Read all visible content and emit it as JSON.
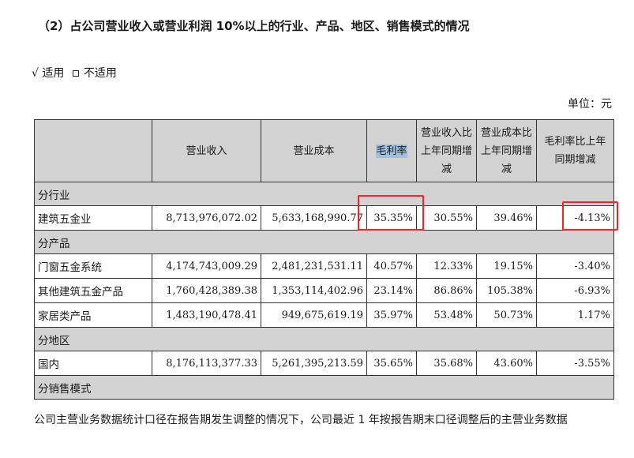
{
  "heading": "（2）占公司营业收入或营业利润 10%以上的行业、产品、地区、销售模式的情况",
  "applicable": {
    "yes_mark": "√",
    "yes_label": "适用",
    "no_label": "不适用"
  },
  "unit": "单位：元",
  "table": {
    "headers": [
      "",
      "营业收入",
      "营业成本",
      "毛利率",
      "营业收入比上年同期增减",
      "营业成本比上年同期增减",
      "毛利率比上年同期增减"
    ],
    "sections": [
      {
        "title": "分行业",
        "rows": [
          [
            "建筑五金业",
            "8,713,976,072.02",
            "5,633,168,990.77",
            "35.35%",
            "30.55%",
            "39.46%",
            "-4.13%"
          ]
        ]
      },
      {
        "title": "分产品",
        "rows": [
          [
            "门窗五金系统",
            "4,174,743,009.29",
            "2,481,231,531.11",
            "40.57%",
            "12.33%",
            "19.15%",
            "-3.40%"
          ],
          [
            "其他建筑五金产品",
            "1,760,428,389.38",
            "1,353,114,402.96",
            "23.14%",
            "86.86%",
            "105.38%",
            "-6.93%"
          ],
          [
            "家居类产品",
            "1,483,190,478.41",
            "949,675,619.19",
            "35.97%",
            "53.48%",
            "50.73%",
            "1.17%"
          ]
        ]
      },
      {
        "title": "分地区",
        "rows": [
          [
            "国内",
            "8,176,113,377.33",
            "5,261,395,213.59",
            "35.65%",
            "35.68%",
            "43.60%",
            "-3.55%"
          ]
        ]
      },
      {
        "title": "分销售模式",
        "rows": []
      }
    ]
  },
  "footnote": "公司主营业务数据统计口径在报告期发生调整的情况下，公司最近 1 年按报告期末口径调整后的主营业务数据",
  "colors": {
    "header_bg": "#d3d3d3",
    "highlight": "#9fc0e0",
    "annotation_red": "#e8262c"
  }
}
